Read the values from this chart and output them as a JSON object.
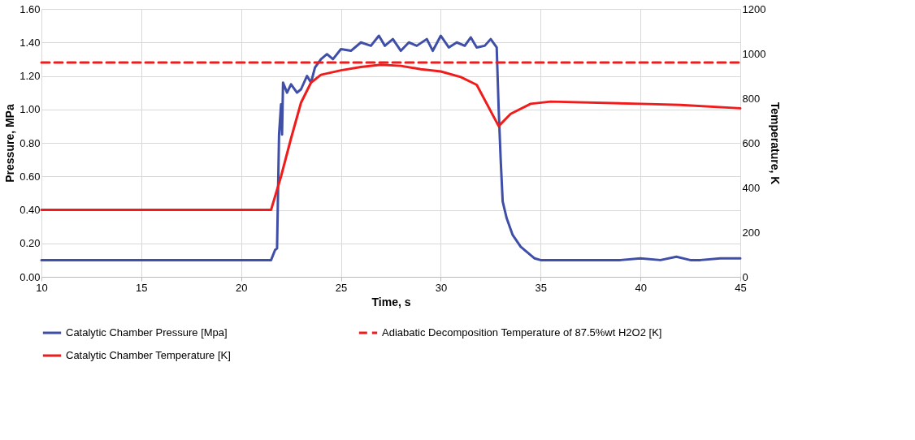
{
  "chart_data": {
    "type": "line",
    "xlabel": "Time, s",
    "ylabel": "Pressure, MPa",
    "y2label": "Temperature, K",
    "xlim": [
      10,
      45
    ],
    "xticks": [
      10,
      15,
      20,
      25,
      30,
      35,
      40,
      45
    ],
    "ylim": [
      0,
      1.6
    ],
    "yticks": [
      {
        "value": 0,
        "label": "0.00"
      },
      {
        "value": 0.2,
        "label": "0.20"
      },
      {
        "value": 0.4,
        "label": "0.40"
      },
      {
        "value": 0.6,
        "label": "0.60"
      },
      {
        "value": 0.8,
        "label": "0.80"
      },
      {
        "value": 1.0,
        "label": "1.00"
      },
      {
        "value": 1.2,
        "label": "1.20"
      },
      {
        "value": 1.4,
        "label": "1.40"
      },
      {
        "value": 1.6,
        "label": "1.60"
      }
    ],
    "y2lim": [
      0,
      1200
    ],
    "y2ticks": [
      0,
      200,
      400,
      600,
      800,
      1000,
      1200
    ],
    "grid": true,
    "legend": "bottom",
    "line_style": "solid",
    "marker": "none",
    "series": [
      {
        "name": "Catalytic Chamber Pressure [Mpa]",
        "color": "#3f4fa8",
        "x": [
          10,
          11,
          12,
          13,
          14,
          15,
          16,
          17,
          18,
          19,
          20,
          21,
          21.5,
          21.7,
          21.8,
          21.9,
          22.0,
          22.05,
          22.1,
          22.3,
          22.5,
          22.8,
          23.0,
          23.3,
          23.5,
          23.7,
          24.0,
          24.3,
          24.6,
          25.0,
          25.5,
          26.0,
          26.5,
          26.9,
          27.2,
          27.6,
          28.0,
          28.4,
          28.8,
          29.3,
          29.6,
          30.0,
          30.4,
          30.8,
          31.2,
          31.5,
          31.8,
          32.2,
          32.5,
          32.8,
          32.9,
          33.0,
          33.1,
          33.3,
          33.6,
          34.0,
          34.3,
          34.7,
          35,
          36,
          37,
          38,
          39,
          40,
          41,
          41.8,
          42.5,
          43,
          44,
          45
        ],
        "values": [
          0.1,
          0.1,
          0.1,
          0.1,
          0.1,
          0.1,
          0.1,
          0.1,
          0.1,
          0.1,
          0.1,
          0.1,
          0.1,
          0.16,
          0.17,
          0.85,
          1.03,
          0.85,
          1.16,
          1.1,
          1.15,
          1.1,
          1.12,
          1.2,
          1.16,
          1.25,
          1.3,
          1.33,
          1.3,
          1.36,
          1.35,
          1.4,
          1.38,
          1.44,
          1.38,
          1.42,
          1.35,
          1.4,
          1.38,
          1.42,
          1.35,
          1.44,
          1.37,
          1.4,
          1.38,
          1.43,
          1.37,
          1.38,
          1.42,
          1.37,
          1.0,
          0.7,
          0.45,
          0.35,
          0.25,
          0.18,
          0.15,
          0.11,
          0.1,
          0.1,
          0.1,
          0.1,
          0.1,
          0.11,
          0.1,
          0.12,
          0.1,
          0.1,
          0.11,
          0.11
        ]
      },
      {
        "name": "Catalytic Chamber Temperature [K]",
        "color": "#f01c1c",
        "axis": "y2",
        "x": [
          10,
          21.5,
          22.0,
          22.5,
          23.0,
          23.5,
          24.0,
          25.0,
          26.0,
          27.0,
          28.0,
          29.0,
          30.0,
          31.0,
          31.8,
          32.9,
          33.5,
          34.5,
          35.5,
          40,
          42,
          45
        ],
        "values": [
          300,
          300,
          450,
          620,
          780,
          870,
          905,
          925,
          940,
          950,
          945,
          930,
          920,
          895,
          860,
          675,
          730,
          775,
          785,
          775,
          770,
          755
        ]
      }
    ],
    "ref_lines": [
      {
        "axis": "y2",
        "value": 960,
        "label": "Adiabatic Decomposition Temperature of 87.5%wt H2O2 [K]",
        "color": "#f01c1c",
        "line_style": "dashed"
      }
    ]
  }
}
